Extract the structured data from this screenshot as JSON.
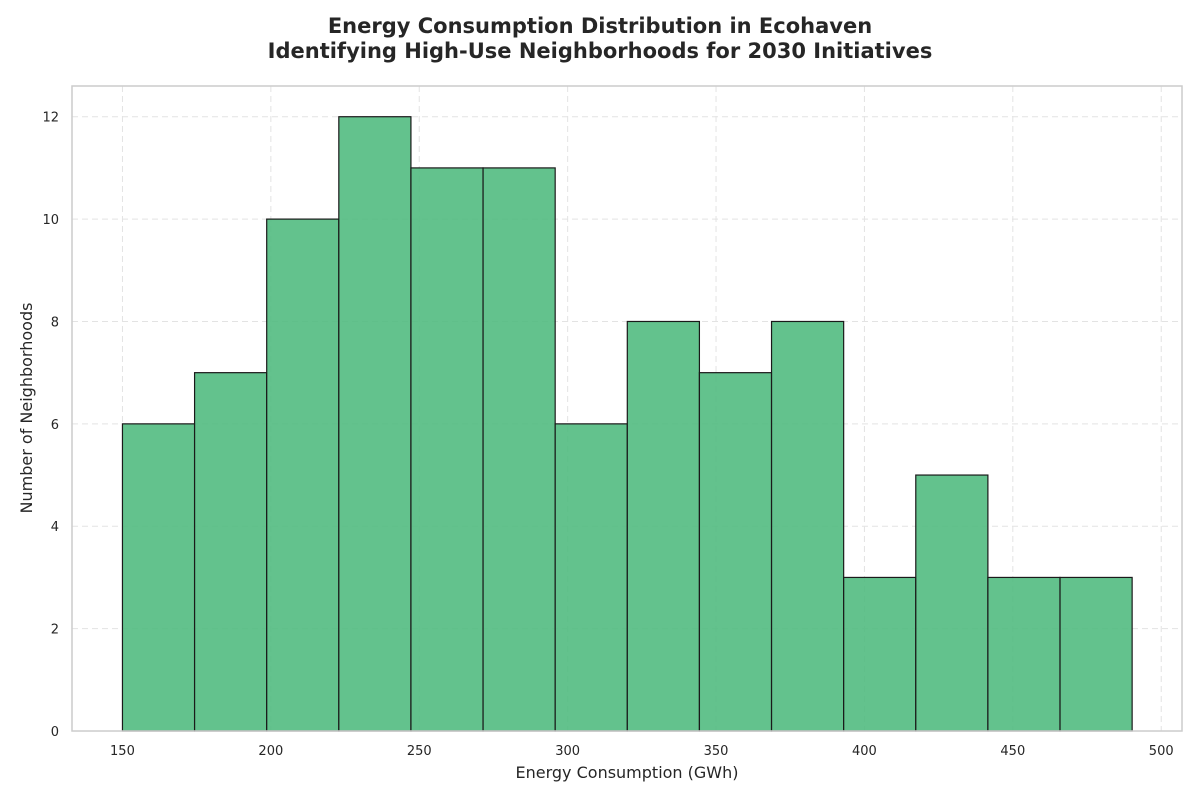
{
  "chart_data": {
    "type": "bar",
    "subtype": "histogram",
    "title": [
      "Energy Consumption Distribution in Ecohaven",
      "Identifying High-Use Neighborhoods for 2030 Initiatives"
    ],
    "xlabel": "Energy Consumption (GWh)",
    "ylabel": "Number of Neighborhoods",
    "xlim": [
      133,
      507
    ],
    "ylim": [
      0,
      12.6
    ],
    "xticks": [
      150,
      200,
      250,
      300,
      350,
      400,
      450,
      500
    ],
    "yticks": [
      0,
      2,
      4,
      6,
      8,
      10,
      12
    ],
    "bin_edges": [
      150,
      174.3,
      198.6,
      222.9,
      247.2,
      271.5,
      295.8,
      320.1,
      344.4,
      368.7,
      393.0,
      417.3,
      441.6,
      465.9,
      490.2
    ],
    "values": [
      6,
      7,
      10,
      12,
      11,
      11,
      6,
      8,
      7,
      8,
      3,
      5,
      3,
      3
    ],
    "bar_color": "#4cb97c",
    "edge_color": "#1a1a1a",
    "grid": true,
    "legend": "none"
  }
}
